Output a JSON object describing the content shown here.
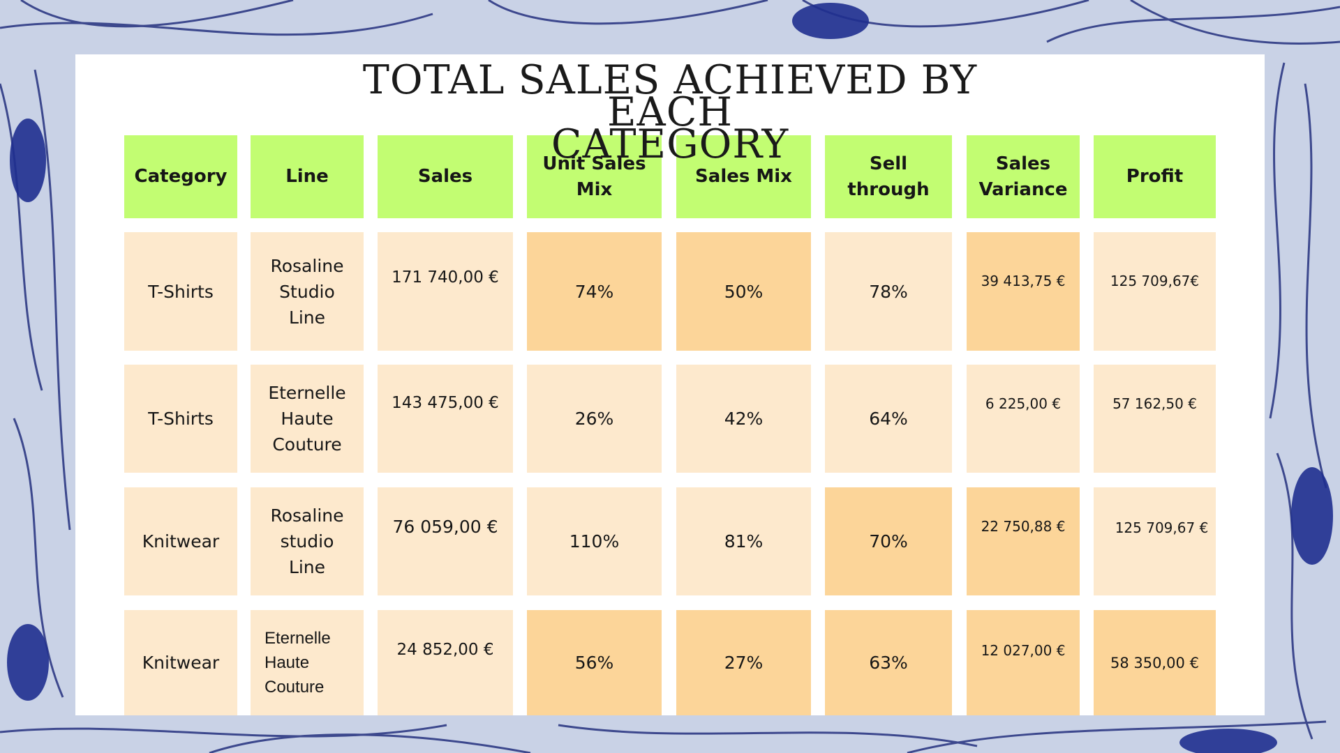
{
  "title_line1": "TOTAL SALES ACHIEVED BY EACH",
  "title_line2": "CATEGORY",
  "headers": [
    "Category",
    "Line",
    "Sales",
    "Unit Sales Mix",
    "Sales Mix",
    "Sell through",
    "Sales Variance",
    "Profit"
  ],
  "rows": [
    [
      "T-Shirts",
      "Rosaline Studio Line",
      "171 740,00 €",
      "74%",
      "50%",
      "78%",
      "39 413,75 €",
      "125 709,67€"
    ],
    [
      "T-Shirts",
      "Eternelle Haute Couture",
      "143 475,00 €",
      "26%",
      "42%",
      "64%",
      "6 225,00 €",
      "57 162,50 €"
    ],
    [
      "Knitwear",
      "Rosaline studio Line",
      "76 059,00 €",
      "110%",
      "81%",
      "70%",
      "22 750,88 €",
      "125 709,67 €"
    ],
    [
      "Knitwear",
      "Eternelle Haute Couture",
      "24 852,00 €",
      "56%",
      "27%",
      "63%",
      "12 027,00 €",
      "58 350,00 €"
    ]
  ],
  "colors": {
    "header_fill": "#c2fd72",
    "cell_light": "#fde9cd",
    "cell_highlight": "#fcd599",
    "background_pattern": "#1f2f8f"
  },
  "background_icon": "blue-floral-line-pattern"
}
